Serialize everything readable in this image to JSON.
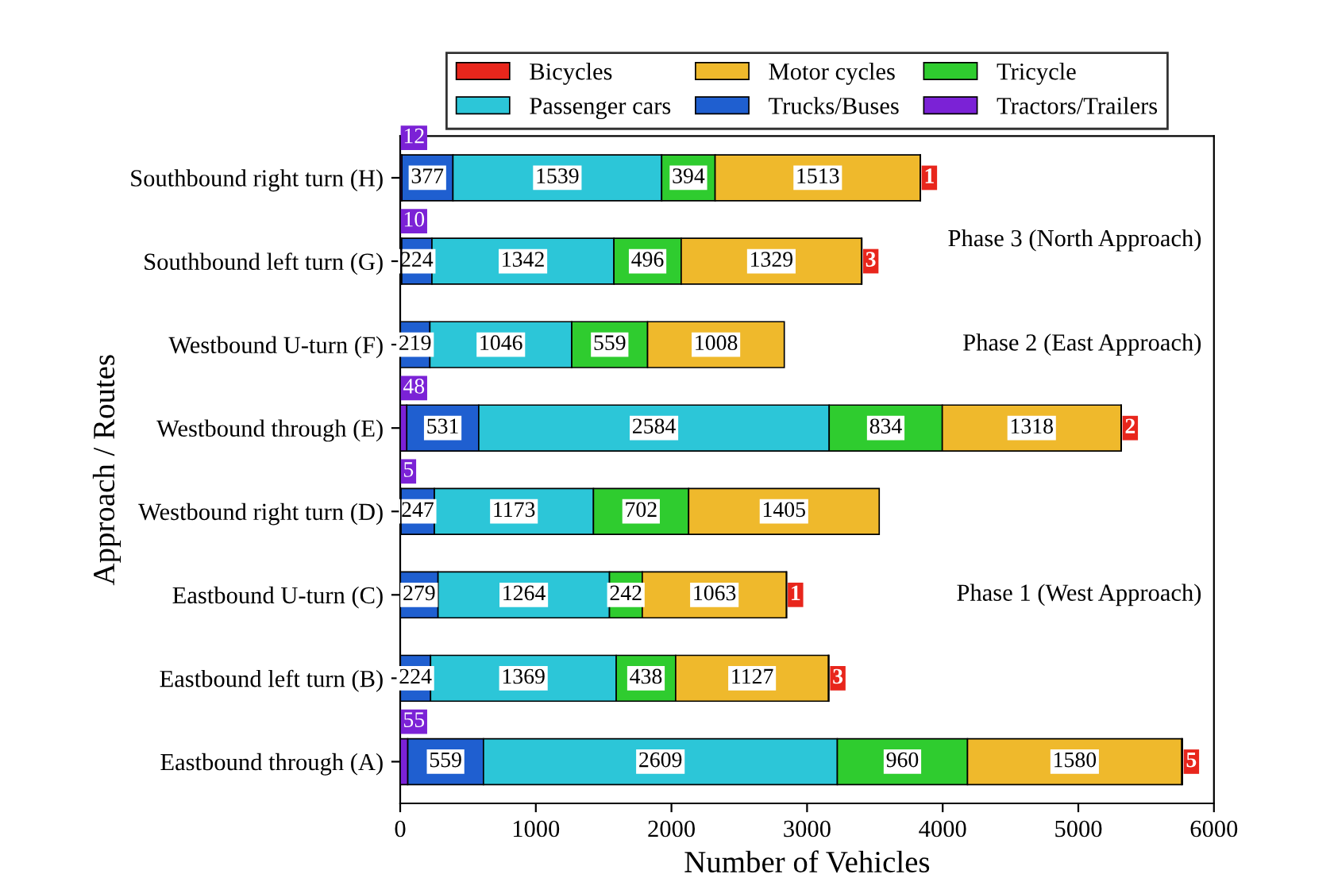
{
  "chart_data": {
    "type": "bar",
    "orientation": "horizontal",
    "stacked": true,
    "data_labels": true,
    "xlabel": "Number of Vehicles",
    "ylabel": "Approach / Routes",
    "categories": [
      "Southbound right turn (H)",
      "Southbound left turn (G)",
      "Westbound U-turn (F)",
      "Westbound through (E)",
      "Westbound right turn (D)",
      "Eastbound U-turn (C)",
      "Eastbound left turn (B)",
      "Eastbound through (A)"
    ],
    "series": [
      {
        "name": "Tractors/Trailers",
        "color": "#7b22d6",
        "values": [
          12,
          10,
          null,
          48,
          5,
          null,
          null,
          55
        ]
      },
      {
        "name": "Trucks/Buses",
        "color": "#1f5fd0",
        "values": [
          377,
          224,
          219,
          531,
          247,
          279,
          224,
          559
        ]
      },
      {
        "name": "Passenger cars",
        "color": "#2cc6d8",
        "values": [
          1539,
          1342,
          1046,
          2584,
          1173,
          1264,
          1369,
          2609
        ]
      },
      {
        "name": "Tricycle",
        "color": "#2fcc2f",
        "values": [
          394,
          496,
          559,
          834,
          702,
          242,
          438,
          960
        ]
      },
      {
        "name": "Motor cycles",
        "color": "#efb92c",
        "values": [
          1513,
          1329,
          1008,
          1318,
          1405,
          1063,
          1127,
          1580
        ]
      },
      {
        "name": "Bicycles",
        "color": "#e8261c",
        "values": [
          1,
          3,
          null,
          2,
          null,
          1,
          3,
          5
        ]
      }
    ],
    "legend": "top",
    "xlim": [
      0,
      6000
    ],
    "xticks": [
      0,
      1000,
      2000,
      3000,
      4000,
      5000,
      6000
    ],
    "grid": false,
    "annotations": [
      "Phase 3 (North Approach)",
      "Phase 2 (East Approach)",
      "Phase 1 (West Approach)"
    ]
  }
}
